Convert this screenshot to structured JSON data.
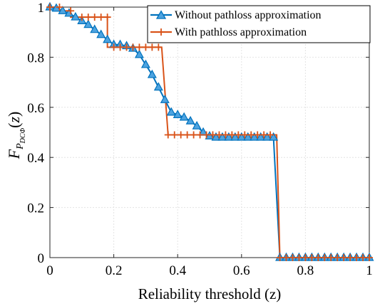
{
  "chart_data": {
    "type": "line",
    "xlabel": "Reliability threshold (z)",
    "ylabel": {
      "main": "F",
      "sub": "P",
      "subsub": "DCΦ",
      "arg_open": "(",
      "arg": "z",
      "arg_close": ")"
    },
    "xlim": [
      0,
      1
    ],
    "ylim": [
      0,
      1
    ],
    "xticks": [
      0,
      0.2,
      0.4,
      0.6,
      0.8,
      1
    ],
    "yticks": [
      0,
      0.2,
      0.4,
      0.6,
      0.8,
      1
    ],
    "xtick_labels": [
      "0",
      "0.2",
      "0.4",
      "0.6",
      "0.8",
      "1"
    ],
    "ytick_labels": [
      "0",
      "0.2",
      "0.4",
      "0.6",
      "0.8",
      "1"
    ],
    "grid": true,
    "legend_position": "top-right",
    "series": [
      {
        "name": "Without pathloss approximation",
        "color": "#0072BD",
        "marker": "triangle",
        "x": [
          0,
          0.02,
          0.04,
          0.06,
          0.08,
          0.1,
          0.12,
          0.14,
          0.16,
          0.18,
          0.2,
          0.22,
          0.24,
          0.26,
          0.28,
          0.3,
          0.32,
          0.34,
          0.36,
          0.38,
          0.4,
          0.42,
          0.44,
          0.46,
          0.48,
          0.5,
          0.52,
          0.54,
          0.56,
          0.58,
          0.6,
          0.62,
          0.64,
          0.66,
          0.68,
          0.7,
          0.72,
          0.74,
          0.76,
          0.78,
          0.8,
          0.82,
          0.84,
          0.86,
          0.88,
          0.9,
          0.92,
          0.94,
          0.96,
          0.98,
          1.0
        ],
        "y": [
          1.0,
          0.995,
          0.985,
          0.975,
          0.96,
          0.945,
          0.93,
          0.91,
          0.89,
          0.87,
          0.85,
          0.85,
          0.845,
          0.835,
          0.81,
          0.77,
          0.73,
          0.68,
          0.63,
          0.58,
          0.57,
          0.56,
          0.545,
          0.525,
          0.5,
          0.485,
          0.48,
          0.48,
          0.48,
          0.48,
          0.48,
          0.48,
          0.48,
          0.48,
          0.48,
          0.48,
          0.0,
          0.0,
          0.0,
          0.0,
          0.0,
          0.0,
          0.0,
          0.0,
          0.0,
          0.0,
          0.0,
          0.0,
          0.0,
          0.0,
          0.0
        ]
      },
      {
        "name": "With pathloss approximation",
        "color": "#D95319",
        "marker": "plus",
        "step_points": [
          [
            0,
            1.0
          ],
          [
            0.03,
            1.0
          ],
          [
            0.03,
            0.985
          ],
          [
            0.065,
            0.985
          ],
          [
            0.065,
            0.96
          ],
          [
            0.18,
            0.96
          ],
          [
            0.18,
            0.84
          ],
          [
            0.35,
            0.84
          ],
          [
            0.35,
            0.84
          ],
          [
            0.37,
            0.49
          ],
          [
            0.71,
            0.49
          ],
          [
            0.72,
            0.0
          ],
          [
            1.0,
            0.0
          ]
        ],
        "marker_x": [
          0,
          0.03,
          0.065,
          0.1,
          0.12,
          0.14,
          0.16,
          0.18,
          0.2,
          0.22,
          0.24,
          0.26,
          0.28,
          0.3,
          0.32,
          0.34,
          0.37,
          0.39,
          0.41,
          0.43,
          0.45,
          0.47,
          0.49,
          0.51,
          0.53,
          0.55,
          0.57,
          0.59,
          0.61,
          0.63,
          0.65,
          0.67,
          0.69,
          0.72,
          0.74,
          0.76,
          0.78,
          0.8,
          0.82,
          0.84,
          0.86,
          0.88,
          0.9,
          0.92,
          0.94,
          0.96,
          0.98,
          1.0
        ]
      }
    ]
  }
}
